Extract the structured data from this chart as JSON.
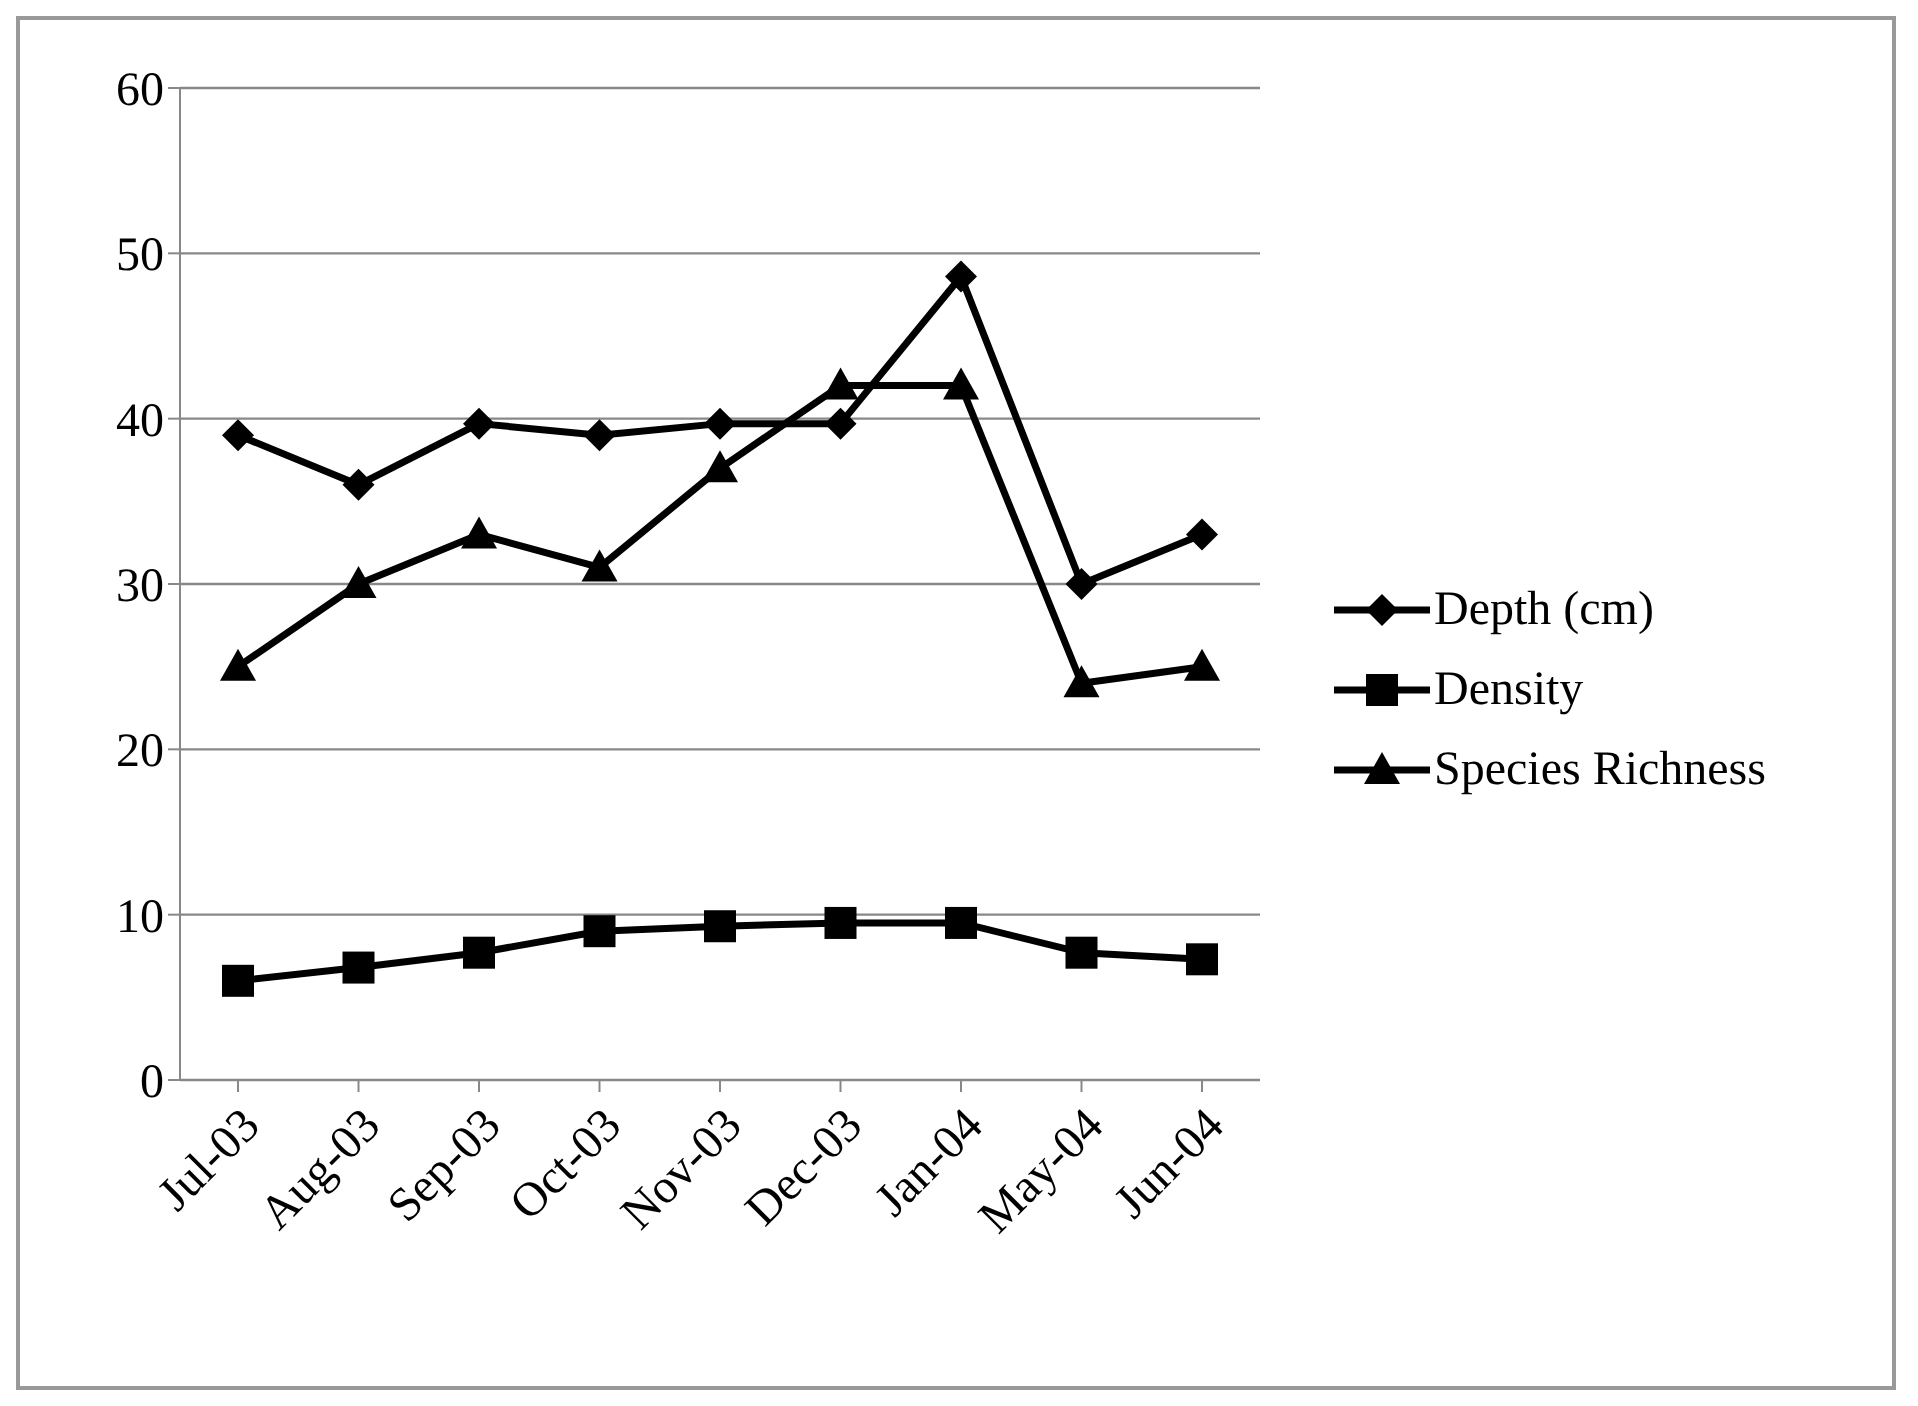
{
  "chart_data": {
    "type": "line",
    "categories": [
      "Jul-03",
      "Aug-03",
      "Sep-03",
      "Oct-03",
      "Nov-03",
      "Dec-03",
      "Jan-04",
      "May-04",
      "Jun-04"
    ],
    "series": [
      {
        "name": "Depth (cm)",
        "color": "#000000",
        "marker": "diamond",
        "values": [
          39,
          36,
          39.7,
          39,
          39.7,
          39.7,
          48.6,
          30,
          33
        ]
      },
      {
        "name": "Density",
        "color": "#000000",
        "marker": "square",
        "values": [
          6,
          6.8,
          7.7,
          9,
          9.3,
          9.5,
          9.5,
          7.7,
          7.3
        ]
      },
      {
        "name": "Species Richness",
        "color": "#000000",
        "marker": "triangle",
        "values": [
          25,
          30,
          33,
          31,
          37,
          42,
          42,
          24,
          25
        ]
      }
    ],
    "ylim": [
      0,
      60
    ],
    "yticks": [
      0,
      10,
      20,
      30,
      40,
      50,
      60
    ],
    "grid": "y",
    "legend": "right",
    "line_style": "solid"
  }
}
